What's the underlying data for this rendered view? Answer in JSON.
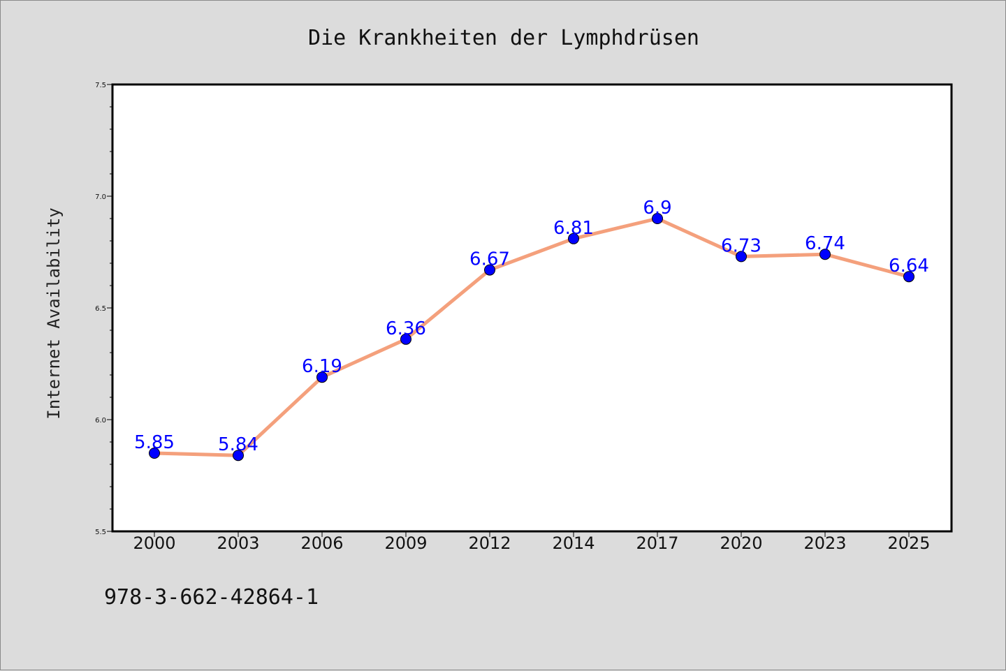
{
  "chart_data": {
    "type": "line",
    "title": "Die Krankheiten der Lymphdrüsen",
    "xlabel": "",
    "ylabel": "Internet Availability",
    "categories": [
      "2000",
      "2003",
      "2006",
      "2009",
      "2012",
      "2014",
      "2017",
      "2020",
      "2023",
      "2025"
    ],
    "series": [
      {
        "values": [
          5.85,
          5.84,
          6.19,
          6.36,
          6.67,
          6.81,
          6.9,
          6.73,
          6.74,
          6.64
        ],
        "line_color": "#f4a07c",
        "marker_color": "#0000ff"
      }
    ],
    "data_labels": [
      "5.85",
      "5.84",
      "6.19",
      "6.36",
      "6.67",
      "6.81",
      "6.9",
      "6.73",
      "6.74",
      "6.64"
    ],
    "ylim": [
      5.5,
      7.5
    ],
    "yticks": [
      "5.5",
      "6.0",
      "6.5",
      "7.0",
      "7.5"
    ],
    "grid": false,
    "legend": "none"
  },
  "footer": {
    "text": "978-3-662-42864-1"
  }
}
